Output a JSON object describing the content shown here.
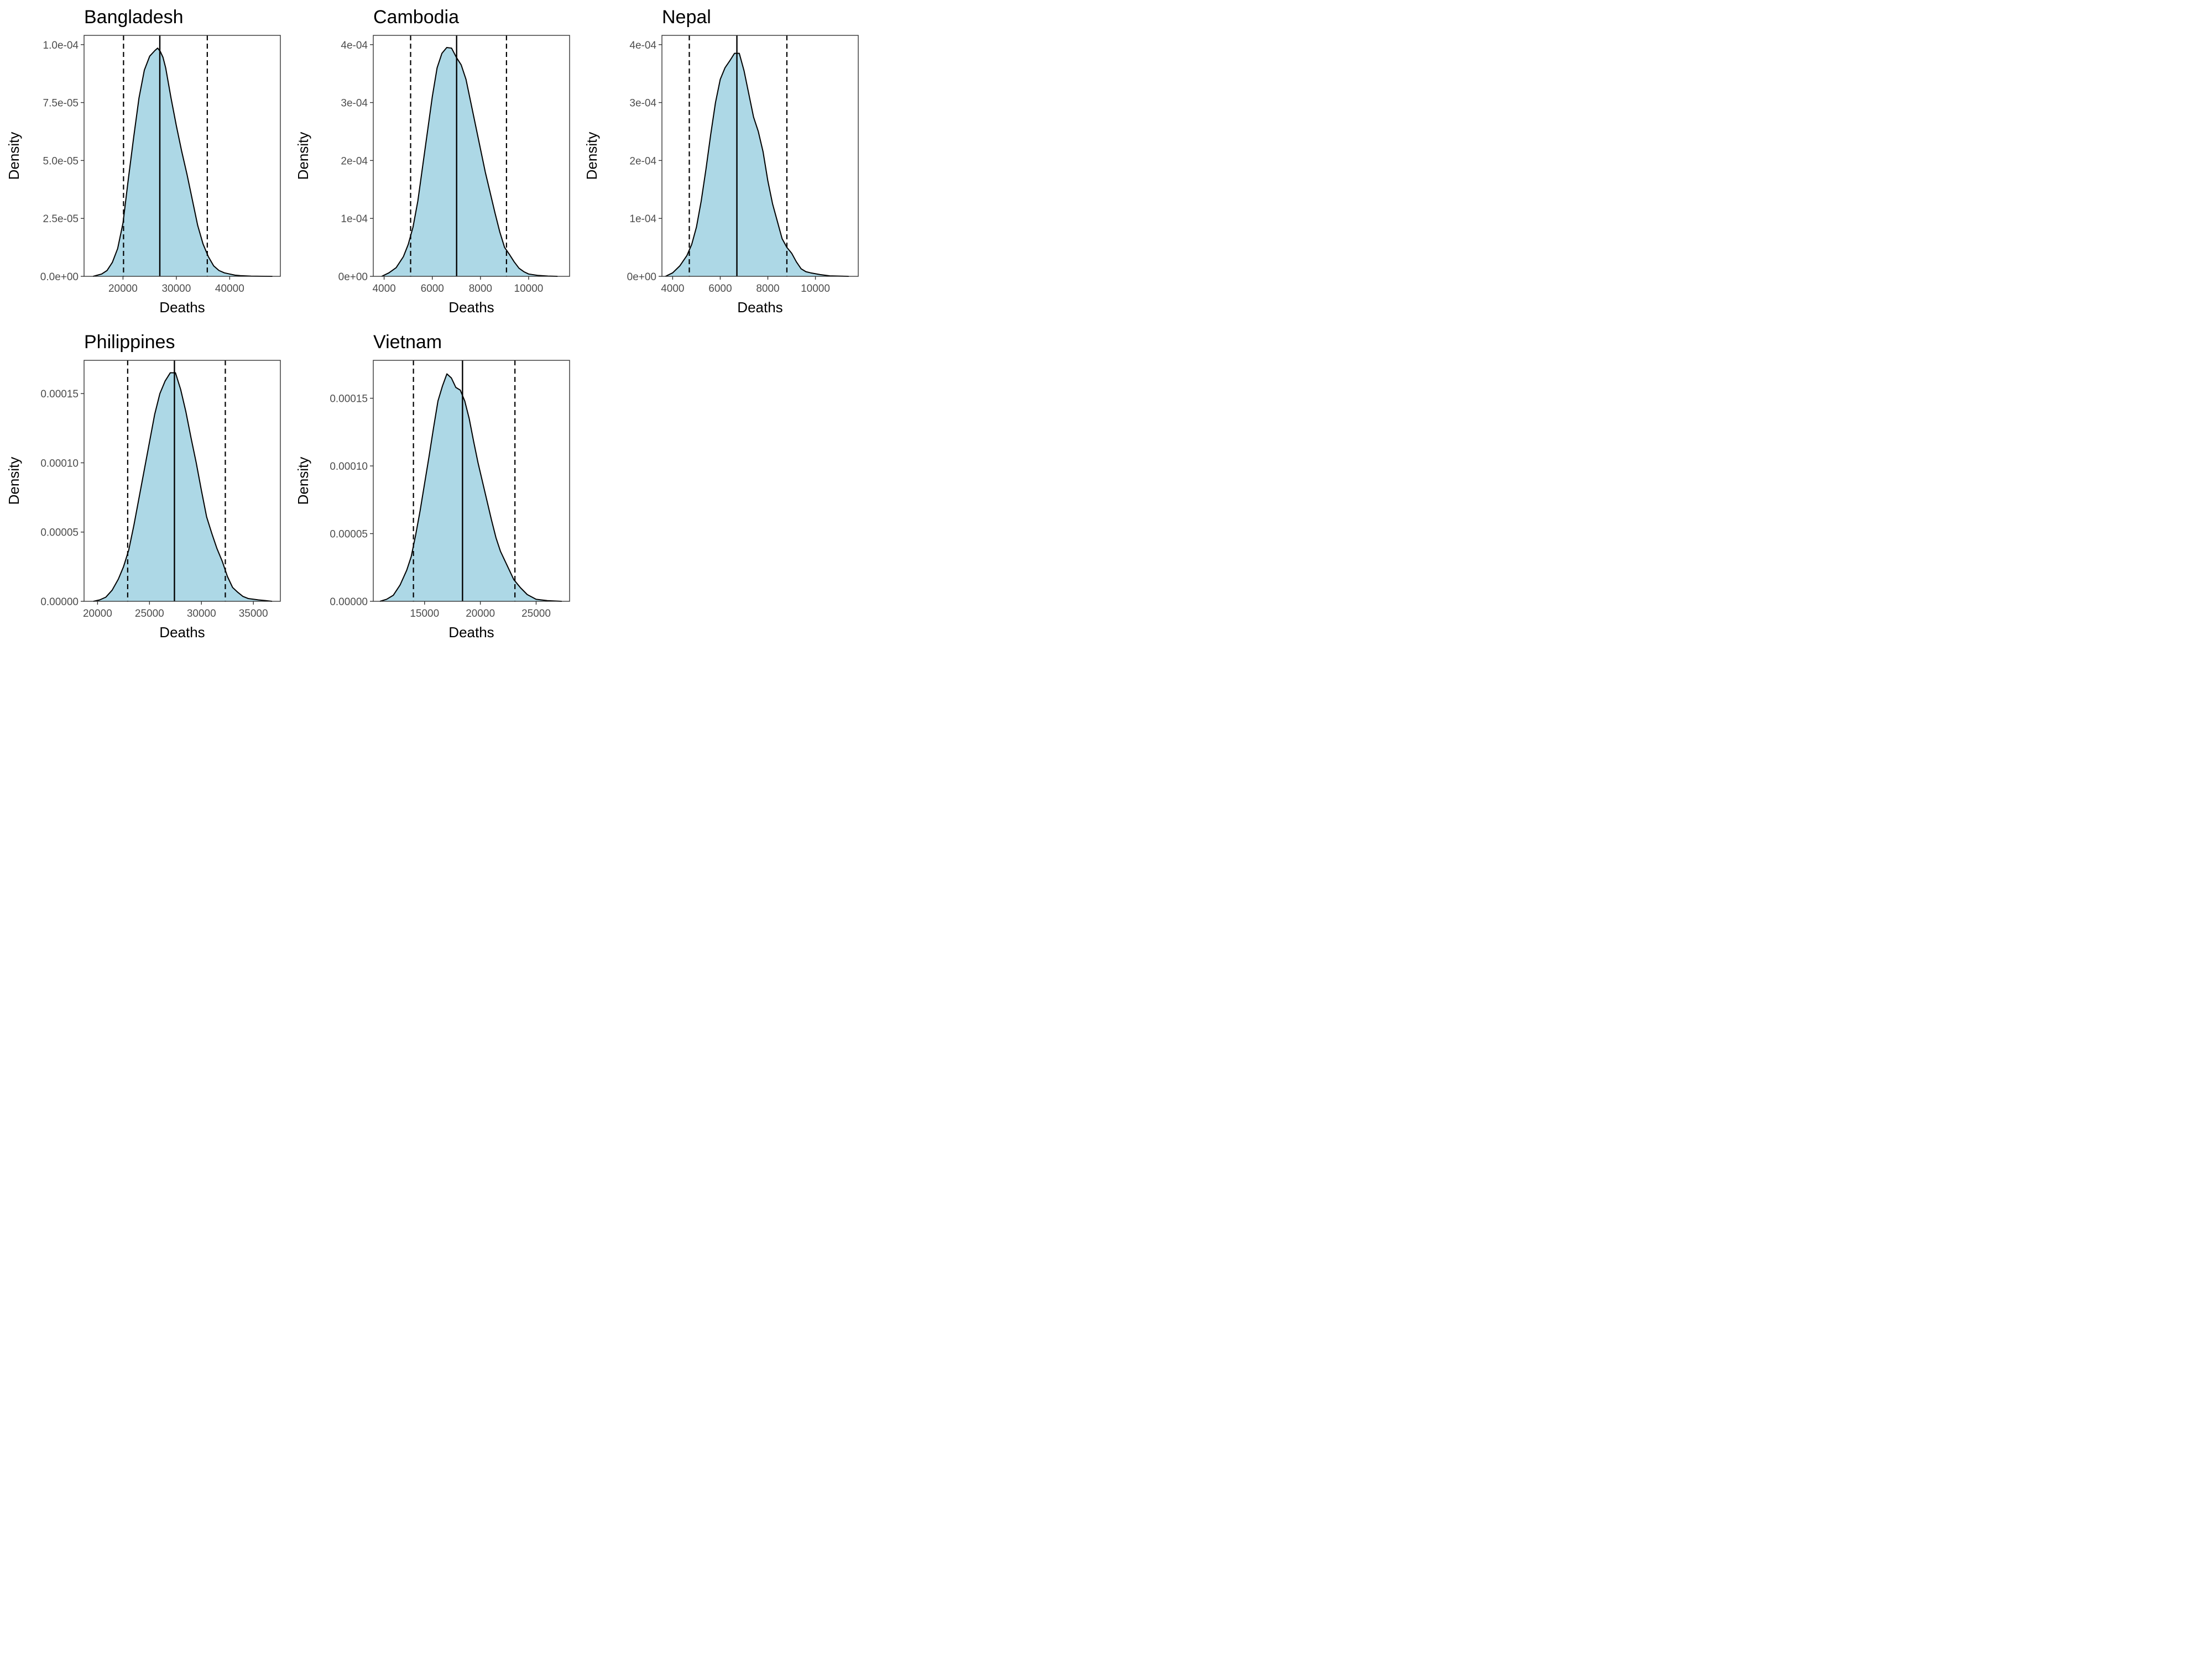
{
  "colors": {
    "fill": "#add8e6",
    "line": "#000000",
    "tick_text": "#4d4d4d"
  },
  "chart_data": [
    {
      "type": "area",
      "title": "Bangladesh",
      "xlabel": "Deaths",
      "ylabel": "Density",
      "xlim": [
        12700,
        49500
      ],
      "ylim": [
        0,
        0.000104
      ],
      "xticks": [
        20000,
        30000,
        40000
      ],
      "xtick_labels": [
        "20000",
        "30000",
        "40000"
      ],
      "yticks": [
        0,
        2.5e-05,
        5e-05,
        7.5e-05,
        0.0001
      ],
      "ytick_labels": [
        "0.0e+00",
        "2.5e-05",
        "5.0e-05",
        "7.5e-05",
        "1.0e-04"
      ],
      "center_line": 26900,
      "interval_lines": [
        20100,
        35800
      ],
      "x": [
        14400,
        16000,
        17000,
        18000,
        19000,
        20000,
        21000,
        22000,
        23000,
        24000,
        25000,
        26000,
        26500,
        27000,
        27500,
        28000,
        29000,
        30000,
        31000,
        32000,
        33000,
        34000,
        35000,
        36000,
        37000,
        38000,
        39000,
        40000,
        41000,
        42000,
        44000,
        46000,
        48000
      ],
      "y": [
        0,
        1e-06,
        2.5e-06,
        6e-06,
        1.2e-05,
        2.3e-05,
        4.2e-05,
        6e-05,
        7.7e-05,
        8.9e-05,
        9.5e-05,
        9.75e-05,
        9.85e-05,
        9.7e-05,
        9.45e-05,
        9e-05,
        7.7e-05,
        6.5e-05,
        5.4e-05,
        4.4e-05,
        3.3e-05,
        2.2e-05,
        1.4e-05,
        8.5e-06,
        4.5e-06,
        2.5e-06,
        1.5e-06,
        1e-06,
        5e-07,
        3e-07,
        1e-07,
        3e-08,
        0
      ]
    },
    {
      "type": "area",
      "title": "Cambodia",
      "xlabel": "Deaths",
      "ylabel": "Density",
      "xlim": [
        3550,
        11700
      ],
      "ylim": [
        0,
        0.000416
      ],
      "xticks": [
        4000,
        6000,
        8000,
        10000
      ],
      "xtick_labels": [
        "4000",
        "6000",
        "8000",
        "10000"
      ],
      "yticks": [
        0,
        0.0001,
        0.0002,
        0.0003,
        0.0004
      ],
      "ytick_labels": [
        "0e+00",
        "1e-04",
        "2e-04",
        "3e-04",
        "4e-04"
      ],
      "center_line": 7010,
      "interval_lines": [
        5100,
        9080
      ],
      "x": [
        3900,
        4200,
        4500,
        4800,
        5000,
        5200,
        5400,
        5600,
        5800,
        6000,
        6200,
        6400,
        6600,
        6800,
        7000,
        7200,
        7400,
        7600,
        7800,
        8000,
        8200,
        8400,
        8600,
        8800,
        9000,
        9200,
        9400,
        9600,
        9800,
        10000,
        10400,
        10800,
        11200
      ],
      "y": [
        0,
        6e-06,
        1.5e-05,
        3.4e-05,
        5.5e-05,
        8.5e-05,
        0.00013,
        0.00019,
        0.00025,
        0.00031,
        0.00036,
        0.000385,
        0.000395,
        0.000394,
        0.000378,
        0.000365,
        0.00034,
        0.0003,
        0.00026,
        0.00022,
        0.00018,
        0.000145,
        0.00011,
        7.7e-05,
        5e-05,
        3.8e-05,
        2.5e-05,
        1.4e-05,
        8e-06,
        4e-06,
        1.5e-06,
        5e-07,
        0
      ]
    },
    {
      "type": "area",
      "title": "Nepal",
      "xlabel": "Deaths",
      "ylabel": "Density",
      "xlim": [
        3550,
        11800
      ],
      "ylim": [
        0,
        0.000416
      ],
      "xticks": [
        4000,
        6000,
        8000,
        10000
      ],
      "xtick_labels": [
        "4000",
        "6000",
        "8000",
        "10000"
      ],
      "yticks": [
        0,
        0.0001,
        0.0002,
        0.0003,
        0.0004
      ],
      "ytick_labels": [
        "0e+00",
        "1e-04",
        "2e-04",
        "3e-04",
        "4e-04"
      ],
      "center_line": 6700,
      "interval_lines": [
        4700,
        8800
      ],
      "x": [
        3700,
        4000,
        4300,
        4600,
        4800,
        5000,
        5200,
        5400,
        5600,
        5800,
        6000,
        6200,
        6400,
        6600,
        6800,
        7000,
        7200,
        7400,
        7600,
        7800,
        8000,
        8200,
        8400,
        8600,
        8800,
        9000,
        9200,
        9400,
        9600,
        9800,
        10200,
        10600,
        11400
      ],
      "y": [
        0,
        6e-06,
        1.8e-05,
        3.6e-05,
        5.5e-05,
        8.5e-05,
        0.00013,
        0.000185,
        0.000245,
        0.0003,
        0.00034,
        0.00036,
        0.000372,
        0.000385,
        0.000385,
        0.000355,
        0.000315,
        0.000275,
        0.00025,
        0.000215,
        0.000165,
        0.000125,
        9.5e-05,
        6.5e-05,
        5e-05,
        4e-05,
        2.5e-05,
        1.3e-05,
        8e-06,
        6e-06,
        3e-06,
        8e-07,
        0
      ]
    },
    {
      "type": "area",
      "title": "Philippines",
      "xlabel": "Deaths",
      "ylabel": "Density",
      "xlim": [
        18700,
        37600
      ],
      "ylim": [
        0,
        0.000174
      ],
      "xticks": [
        20000,
        25000,
        30000,
        35000
      ],
      "xtick_labels": [
        "20000",
        "25000",
        "30000",
        "35000"
      ],
      "yticks": [
        0,
        5e-05,
        0.0001,
        0.00015
      ],
      "ytick_labels": [
        "0.00000",
        "0.00005",
        "0.00010",
        "0.00015"
      ],
      "center_line": 27400,
      "interval_lines": [
        22900,
        32300
      ],
      "x": [
        19600,
        20200,
        20800,
        21400,
        22000,
        22500,
        23000,
        23500,
        24000,
        24500,
        25000,
        25500,
        26000,
        26500,
        27000,
        27500,
        28000,
        28500,
        29000,
        29500,
        30000,
        30500,
        31000,
        31500,
        32000,
        32500,
        33000,
        33500,
        34000,
        34500,
        35500,
        36200,
        36800
      ],
      "y": [
        0,
        1e-06,
        3e-06,
        8e-06,
        1.6e-05,
        2.5e-05,
        3.7e-05,
        5.5e-05,
        7.5e-05,
        9.5e-05,
        0.000115,
        0.000135,
        0.00015,
        0.000159,
        0.000165,
        0.000165,
        0.000153,
        0.000137,
        0.000118,
        0.0001,
        8e-05,
        6.1e-05,
        4.9e-05,
        3.8e-05,
        2.9e-05,
        1.8e-05,
        1e-05,
        6.5e-06,
        3.5e-06,
        2e-06,
        1e-06,
        5e-07,
        0
      ]
    },
    {
      "type": "area",
      "title": "Vietnam",
      "xlabel": "Deaths",
      "ylabel": "Density",
      "xlim": [
        10400,
        28000
      ],
      "ylim": [
        0,
        0.000178
      ],
      "xticks": [
        15000,
        20000,
        25000
      ],
      "xtick_labels": [
        "15000",
        "20000",
        "25000"
      ],
      "yticks": [
        0,
        5e-05,
        0.0001,
        0.00015
      ],
      "ytick_labels": [
        "0.00000",
        "0.00005",
        "0.00010",
        "0.00015"
      ],
      "center_line": 18400,
      "interval_lines": [
        14000,
        23100
      ],
      "x": [
        11000,
        11600,
        12200,
        12800,
        13400,
        13800,
        14200,
        14600,
        15000,
        15400,
        15800,
        16200,
        16600,
        17000,
        17400,
        17800,
        18200,
        18600,
        19000,
        19400,
        19800,
        20200,
        20600,
        21000,
        21400,
        21800,
        22200,
        22600,
        23000,
        23600,
        24200,
        25000,
        26000,
        27300
      ],
      "y": [
        0,
        1.5e-06,
        4.5e-06,
        1.2e-05,
        2.3e-05,
        3.3e-05,
        4.9e-05,
        6.7e-05,
        8.7e-05,
        0.000107,
        0.000128,
        0.000148,
        0.000159,
        0.000168,
        0.000165,
        0.000158,
        0.000156,
        0.000148,
        0.000135,
        0.000118,
        0.000102,
        8.8e-05,
        7.4e-05,
        6e-05,
        4.7e-05,
        3.7e-05,
        3e-05,
        2.3e-05,
        1.6e-05,
        1e-05,
        5e-06,
        1.5e-06,
        5e-07,
        0
      ]
    }
  ]
}
